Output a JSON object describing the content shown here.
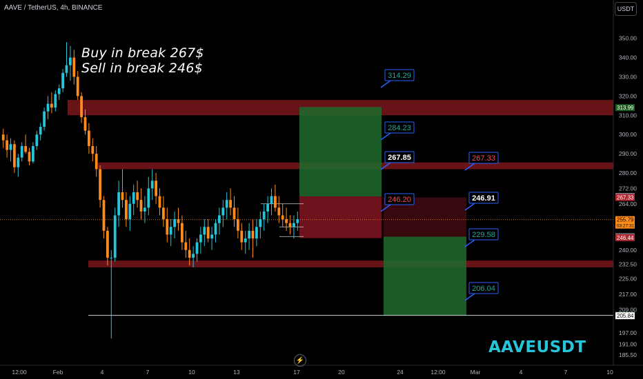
{
  "header": {
    "symbol_line": "AAVE / TetherUS, 4h, BINANCE",
    "currency_label": "USDT"
  },
  "annotations": {
    "note_line_1": "Buy in break 267$",
    "note_line_2": "Sell in break 246$",
    "watermark": "AAVEUSDT",
    "replay_icon": "lightning-icon"
  },
  "colors": {
    "background": "#000000",
    "up_candle": "#26c6da",
    "down_candle": "#ff8c1a",
    "zone_red": "#8b1a1f",
    "target_green": "#1e6b2e",
    "stop_red": "#7a1520",
    "label_border": "#2962ff"
  },
  "chart_data": {
    "type": "candlestick",
    "title": "AAVE / TetherUS, 4h, BINANCE",
    "y_axis": {
      "ticks": [
        350.0,
        340.0,
        330.0,
        320.0,
        310.0,
        300.0,
        290.0,
        280.0,
        272.0,
        264.0,
        240.0,
        232.5,
        225.0,
        217.0,
        209.0,
        197.0,
        191.0,
        185.5
      ],
      "range": [
        185.5,
        352
      ]
    },
    "x_axis": {
      "ticks": [
        "12:00",
        "Feb",
        "4",
        "7",
        "10",
        "13",
        "17",
        "20",
        "24",
        "12:00",
        "Mar",
        "4",
        "7",
        "10"
      ]
    },
    "price_badges": [
      {
        "value": "313.99",
        "price": 313.99,
        "style": "green"
      },
      {
        "value": "267.85",
        "price": 267.85,
        "style": "gray"
      },
      {
        "value": "267.33",
        "price": 267.33,
        "style": "red"
      },
      {
        "value": "255.79",
        "price": 255.79,
        "style": "orange",
        "subtext": "03:27:31"
      },
      {
        "value": "246.91",
        "price": 246.91,
        "style": "gray"
      },
      {
        "value": "246.44",
        "price": 246.44,
        "style": "red"
      },
      {
        "value": "206.04",
        "price": 206.04,
        "style": "green"
      },
      {
        "value": "205.84",
        "price": 205.84,
        "style": "white"
      }
    ],
    "zones": [
      {
        "name": "resistance-zone-upper",
        "from": 310.0,
        "to": 318.0
      },
      {
        "name": "resistance-zone-middle",
        "from": 282.0,
        "to": 285.5
      },
      {
        "name": "support-zone-lower",
        "from": 231.0,
        "to": 234.5
      }
    ],
    "long_position": {
      "entry": 267.85,
      "target": 314.29,
      "stop": 246.2,
      "mid_target": 284.23
    },
    "short_position": {
      "entry": 246.91,
      "target": 206.04,
      "stop": 267.33,
      "mid_target": 229.58
    },
    "level_labels": [
      {
        "text": "314.29",
        "price": 314.29,
        "style": "green"
      },
      {
        "text": "284.23",
        "price": 284.23,
        "style": "green"
      },
      {
        "text": "267.85",
        "price": 267.85,
        "style": "white"
      },
      {
        "text": "246.20",
        "price": 246.2,
        "style": "red"
      },
      {
        "text": "267.33",
        "price": 267.33,
        "style": "red"
      },
      {
        "text": "246.91",
        "price": 246.91,
        "style": "white"
      },
      {
        "text": "229.58",
        "price": 229.58,
        "style": "green"
      },
      {
        "text": "206.04",
        "price": 206.04,
        "style": "green"
      }
    ],
    "last_price": 255.79,
    "support_line": 206.04,
    "candles": [
      [
        300,
        303,
        293,
        297
      ],
      [
        297,
        300,
        288,
        292
      ],
      [
        292,
        298,
        286,
        295
      ],
      [
        295,
        297,
        280,
        283
      ],
      [
        283,
        290,
        278,
        288
      ],
      [
        288,
        296,
        286,
        294
      ],
      [
        294,
        300,
        290,
        291
      ],
      [
        291,
        293,
        284,
        286
      ],
      [
        286,
        296,
        285,
        294
      ],
      [
        294,
        302,
        292,
        300
      ],
      [
        300,
        306,
        297,
        304
      ],
      [
        304,
        314,
        302,
        312
      ],
      [
        312,
        320,
        308,
        316
      ],
      [
        316,
        322,
        311,
        314
      ],
      [
        314,
        323,
        312,
        321
      ],
      [
        321,
        326,
        318,
        324
      ],
      [
        324,
        334,
        322,
        332
      ],
      [
        332,
        348,
        330,
        336
      ],
      [
        336,
        346,
        328,
        340
      ],
      [
        340,
        344,
        326,
        330
      ],
      [
        330,
        333,
        318,
        320
      ],
      [
        320,
        322,
        306,
        309
      ],
      [
        309,
        313,
        300,
        302
      ],
      [
        302,
        306,
        290,
        294
      ],
      [
        294,
        298,
        286,
        290
      ],
      [
        290,
        294,
        278,
        282
      ],
      [
        282,
        284,
        262,
        266
      ],
      [
        266,
        268,
        246,
        250
      ],
      [
        250,
        252,
        232,
        236
      ],
      [
        236,
        240,
        194,
        236
      ],
      [
        236,
        262,
        234,
        258
      ],
      [
        258,
        276,
        252,
        270
      ],
      [
        270,
        282,
        262,
        266
      ],
      [
        266,
        270,
        252,
        256
      ],
      [
        256,
        268,
        250,
        264
      ],
      [
        264,
        274,
        258,
        270
      ],
      [
        270,
        276,
        262,
        266
      ],
      [
        266,
        272,
        256,
        260
      ],
      [
        260,
        268,
        254,
        262
      ],
      [
        262,
        278,
        258,
        272
      ],
      [
        272,
        282,
        266,
        276
      ],
      [
        276,
        280,
        264,
        268
      ],
      [
        268,
        272,
        258,
        262
      ],
      [
        262,
        268,
        252,
        256
      ],
      [
        256,
        262,
        244,
        248
      ],
      [
        248,
        256,
        242,
        252
      ],
      [
        252,
        260,
        246,
        256
      ],
      [
        256,
        262,
        250,
        254
      ],
      [
        254,
        258,
        240,
        244
      ],
      [
        244,
        250,
        236,
        240
      ],
      [
        240,
        246,
        232,
        236
      ],
      [
        236,
        242,
        231,
        238
      ],
      [
        238,
        246,
        234,
        244
      ],
      [
        244,
        252,
        238,
        248
      ],
      [
        248,
        256,
        242,
        252
      ],
      [
        252,
        256,
        244,
        246
      ],
      [
        246,
        252,
        240,
        248
      ],
      [
        248,
        256,
        244,
        254
      ],
      [
        254,
        262,
        248,
        258
      ],
      [
        258,
        266,
        252,
        262
      ],
      [
        262,
        270,
        256,
        266
      ],
      [
        266,
        272,
        258,
        262
      ],
      [
        262,
        268,
        252,
        256
      ],
      [
        256,
        262,
        246,
        250
      ],
      [
        250,
        254,
        240,
        244
      ],
      [
        244,
        250,
        238,
        246
      ],
      [
        246,
        254,
        240,
        250
      ],
      [
        250,
        256,
        236,
        246
      ],
      [
        246,
        256,
        242,
        252
      ],
      [
        252,
        260,
        246,
        256
      ],
      [
        256,
        264,
        250,
        260
      ],
      [
        260,
        268,
        254,
        264
      ],
      [
        264,
        272,
        258,
        268
      ],
      [
        268,
        274,
        260,
        262
      ],
      [
        262,
        268,
        254,
        258
      ],
      [
        258,
        264,
        252,
        256
      ],
      [
        256,
        262,
        250,
        254
      ],
      [
        254,
        258,
        248,
        252
      ],
      [
        252,
        258,
        246,
        254
      ],
      [
        254,
        260,
        250,
        256
      ]
    ]
  }
}
